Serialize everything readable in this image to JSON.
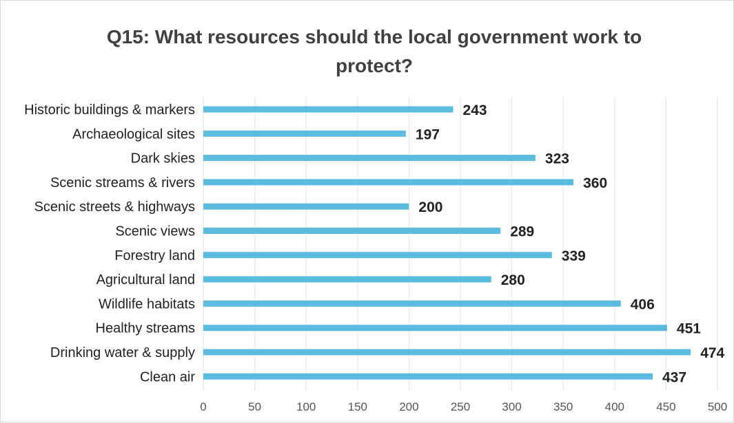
{
  "chart_data": {
    "type": "bar",
    "orientation": "horizontal",
    "title_lines": [
      "Q15: What resources should the local government work to",
      "protect?"
    ],
    "categories": [
      "Historic buildings & markers",
      "Archaeological sites",
      "Dark skies",
      "Scenic streams & rivers",
      "Scenic streets & highways",
      "Scenic views",
      "Forestry land",
      "Agricultural land",
      "Wildlife habitats",
      "Healthy streams",
      "Drinking water & supply",
      "Clean air"
    ],
    "values": [
      243,
      197,
      323,
      360,
      200,
      289,
      339,
      280,
      406,
      451,
      474,
      437
    ],
    "x_ticks": [
      "0",
      "50",
      "100",
      "150",
      "200",
      "250",
      "300",
      "350",
      "400",
      "450",
      "500"
    ],
    "xlim": [
      0,
      500
    ],
    "grid": "vertical",
    "data_labels": true,
    "bar_color": "#5bbce0"
  }
}
